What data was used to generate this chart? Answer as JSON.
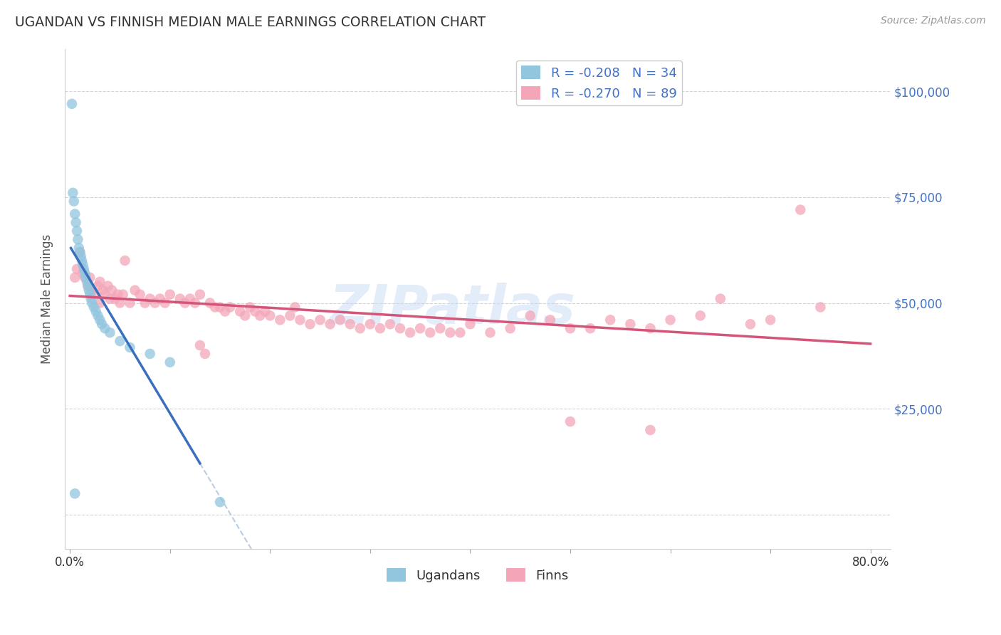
{
  "title": "UGANDAN VS FINNISH MEDIAN MALE EARNINGS CORRELATION CHART",
  "source": "Source: ZipAtlas.com",
  "ylabel": "Median Male Earnings",
  "legend_blue_label": "R = -0.208   N = 34",
  "legend_pink_label": "R = -0.270   N = 89",
  "legend_bottom_ugandans": "Ugandans",
  "legend_bottom_finns": "Finns",
  "watermark": "ZIPatlas",
  "blue_color": "#92c5de",
  "pink_color": "#f4a6b8",
  "blue_line_color": "#3a6fbe",
  "pink_line_color": "#d4557a",
  "dashed_line_color": "#b0c4de",
  "axis_label_color": "#4472c4",
  "ugandan_x": [
    0.002,
    0.003,
    0.004,
    0.005,
    0.006,
    0.007,
    0.008,
    0.009,
    0.01,
    0.011,
    0.012,
    0.013,
    0.014,
    0.015,
    0.016,
    0.017,
    0.018,
    0.019,
    0.02,
    0.021,
    0.022,
    0.024,
    0.026,
    0.028,
    0.03,
    0.032,
    0.035,
    0.04,
    0.05,
    0.06,
    0.08,
    0.1,
    0.005,
    0.15
  ],
  "ugandan_y": [
    97000,
    76000,
    74000,
    71000,
    69000,
    67000,
    65000,
    63000,
    62000,
    61000,
    60000,
    59000,
    58000,
    57000,
    56000,
    55000,
    54000,
    53000,
    52000,
    51000,
    50000,
    49000,
    48000,
    47000,
    46000,
    45000,
    44000,
    43000,
    41000,
    39500,
    38000,
    36000,
    5000,
    3000
  ],
  "finn_x": [
    0.005,
    0.007,
    0.01,
    0.013,
    0.015,
    0.018,
    0.02,
    0.022,
    0.025,
    0.028,
    0.03,
    0.033,
    0.035,
    0.038,
    0.04,
    0.042,
    0.045,
    0.048,
    0.05,
    0.053,
    0.055,
    0.06,
    0.065,
    0.07,
    0.075,
    0.08,
    0.085,
    0.09,
    0.095,
    0.1,
    0.11,
    0.115,
    0.12,
    0.125,
    0.13,
    0.135,
    0.14,
    0.145,
    0.15,
    0.155,
    0.16,
    0.17,
    0.175,
    0.18,
    0.185,
    0.19,
    0.195,
    0.2,
    0.21,
    0.22,
    0.225,
    0.23,
    0.24,
    0.25,
    0.26,
    0.27,
    0.28,
    0.29,
    0.3,
    0.31,
    0.32,
    0.33,
    0.34,
    0.35,
    0.36,
    0.37,
    0.38,
    0.39,
    0.4,
    0.42,
    0.44,
    0.46,
    0.48,
    0.5,
    0.52,
    0.54,
    0.56,
    0.58,
    0.6,
    0.63,
    0.65,
    0.68,
    0.7,
    0.73,
    0.75,
    0.03,
    0.5,
    0.58,
    0.13
  ],
  "finn_y": [
    56000,
    58000,
    62000,
    57000,
    56000,
    54000,
    56000,
    53000,
    52000,
    54000,
    55000,
    53000,
    52000,
    54000,
    51000,
    53000,
    51000,
    52000,
    50000,
    52000,
    60000,
    50000,
    53000,
    52000,
    50000,
    51000,
    50000,
    51000,
    50000,
    52000,
    51000,
    50000,
    51000,
    50000,
    40000,
    38000,
    50000,
    49000,
    49000,
    48000,
    49000,
    48000,
    47000,
    49000,
    48000,
    47000,
    48000,
    47000,
    46000,
    47000,
    49000,
    46000,
    45000,
    46000,
    45000,
    46000,
    45000,
    44000,
    45000,
    44000,
    45000,
    44000,
    43000,
    44000,
    43000,
    44000,
    43000,
    43000,
    45000,
    43000,
    44000,
    47000,
    46000,
    44000,
    44000,
    46000,
    45000,
    44000,
    46000,
    47000,
    51000,
    45000,
    46000,
    72000,
    49000,
    50000,
    22000,
    20000,
    52000
  ],
  "xlim": [
    -0.005,
    0.82
  ],
  "ylim": [
    -8000,
    110000
  ],
  "ytick_vals": [
    0,
    25000,
    50000,
    75000,
    100000
  ],
  "xtick_vals": [
    0.0,
    0.1,
    0.2,
    0.3,
    0.4,
    0.5,
    0.6,
    0.7,
    0.8
  ]
}
